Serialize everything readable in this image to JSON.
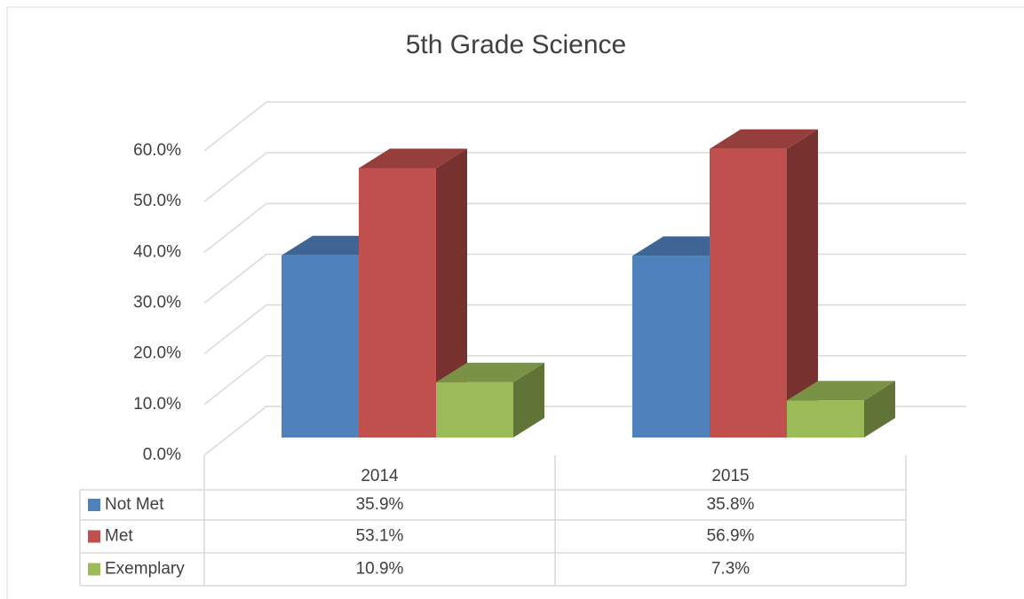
{
  "chart_data": {
    "type": "bar3d",
    "title": "5th Grade Science",
    "categories": [
      "2014",
      "2015"
    ],
    "series": [
      {
        "name": "Not Met",
        "color": "#4f81bd",
        "values": [
          35.9,
          35.8
        ],
        "value_labels": [
          "35.9%",
          "35.8%"
        ]
      },
      {
        "name": "Met",
        "color": "#c0504d",
        "values": [
          53.1,
          56.9
        ],
        "value_labels": [
          "53.1%",
          "56.9%"
        ]
      },
      {
        "name": "Exemplary",
        "color": "#9bbb59",
        "values": [
          10.9,
          7.3
        ],
        "value_labels": [
          "10.9%",
          "7.3%"
        ]
      }
    ],
    "ylim": [
      0,
      60
    ],
    "yticks": [
      {
        "value": 0,
        "label": "0.0%"
      },
      {
        "value": 10,
        "label": "10.0%"
      },
      {
        "value": 20,
        "label": "20.0%"
      },
      {
        "value": 30,
        "label": "30.0%"
      },
      {
        "value": 40,
        "label": "40.0%"
      },
      {
        "value": 50,
        "label": "50.0%"
      },
      {
        "value": 60,
        "label": "60.0%"
      }
    ],
    "grid": true
  }
}
